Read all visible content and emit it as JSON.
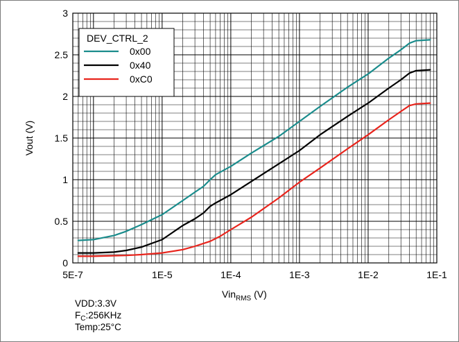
{
  "chart_data": {
    "type": "line",
    "xscale": "log",
    "xlabel": {
      "main": "Vin",
      "sub": "RMS",
      "unit": " (V)"
    },
    "ylabel": "Vout (V)",
    "xlim": [
      5e-07,
      0.1
    ],
    "ylim": [
      0,
      3
    ],
    "xticks": [
      {
        "value": 5e-07,
        "label": "5E-7"
      },
      {
        "value": 1e-05,
        "label": "1E-5"
      },
      {
        "value": 0.0001,
        "label": "1E-4"
      },
      {
        "value": 0.001,
        "label": "1E-3"
      },
      {
        "value": 0.01,
        "label": "1E-2"
      },
      {
        "value": 0.1,
        "label": "1E-1"
      }
    ],
    "yticks": [
      {
        "value": 0,
        "label": "0"
      },
      {
        "value": 0.5,
        "label": "0.5"
      },
      {
        "value": 1,
        "label": "1"
      },
      {
        "value": 1.5,
        "label": "1.5"
      },
      {
        "value": 2,
        "label": "2"
      },
      {
        "value": 2.5,
        "label": "2.5"
      },
      {
        "value": 3,
        "label": "3"
      }
    ],
    "grid": true,
    "legend": {
      "title": "DEV_CTRL_2",
      "placement": "top-left"
    },
    "series": [
      {
        "name": "0x00",
        "color": "#1a8c8c",
        "points": [
          [
            6e-07,
            0.27
          ],
          [
            1e-06,
            0.28
          ],
          [
            2e-06,
            0.33
          ],
          [
            3e-06,
            0.38
          ],
          [
            5e-06,
            0.46
          ],
          [
            1e-05,
            0.58
          ],
          [
            2e-05,
            0.75
          ],
          [
            3e-05,
            0.85
          ],
          [
            4e-05,
            0.92
          ],
          [
            5e-05,
            1.0
          ],
          [
            6e-05,
            1.06
          ],
          [
            0.0001,
            1.16
          ],
          [
            0.0002,
            1.32
          ],
          [
            0.0005,
            1.52
          ],
          [
            0.001,
            1.7
          ],
          [
            0.002,
            1.88
          ],
          [
            0.005,
            2.11
          ],
          [
            0.01,
            2.27
          ],
          [
            0.02,
            2.46
          ],
          [
            0.03,
            2.56
          ],
          [
            0.04,
            2.64
          ],
          [
            0.05,
            2.67
          ],
          [
            0.08,
            2.68
          ]
        ]
      },
      {
        "name": "0x40",
        "color": "#000000",
        "points": [
          [
            6e-07,
            0.12
          ],
          [
            1e-06,
            0.12
          ],
          [
            2e-06,
            0.13
          ],
          [
            3e-06,
            0.15
          ],
          [
            5e-06,
            0.19
          ],
          [
            1e-05,
            0.28
          ],
          [
            2e-05,
            0.45
          ],
          [
            3e-05,
            0.53
          ],
          [
            4e-05,
            0.6
          ],
          [
            5e-05,
            0.68
          ],
          [
            6e-05,
            0.72
          ],
          [
            0.0001,
            0.82
          ],
          [
            0.0002,
            0.98
          ],
          [
            0.0005,
            1.19
          ],
          [
            0.001,
            1.35
          ],
          [
            0.002,
            1.54
          ],
          [
            0.005,
            1.76
          ],
          [
            0.01,
            1.92
          ],
          [
            0.02,
            2.1
          ],
          [
            0.03,
            2.2
          ],
          [
            0.04,
            2.28
          ],
          [
            0.05,
            2.31
          ],
          [
            0.08,
            2.32
          ]
        ]
      },
      {
        "name": "0xC0",
        "color": "#e8241c",
        "points": [
          [
            6e-07,
            0.08
          ],
          [
            1e-06,
            0.08
          ],
          [
            3e-06,
            0.09
          ],
          [
            5e-06,
            0.1
          ],
          [
            1e-05,
            0.12
          ],
          [
            2e-05,
            0.16
          ],
          [
            3e-05,
            0.2
          ],
          [
            5e-05,
            0.26
          ],
          [
            7e-05,
            0.32
          ],
          [
            0.0001,
            0.4
          ],
          [
            0.0002,
            0.55
          ],
          [
            0.0005,
            0.78
          ],
          [
            0.001,
            0.97
          ],
          [
            0.002,
            1.14
          ],
          [
            0.005,
            1.37
          ],
          [
            0.01,
            1.54
          ],
          [
            0.02,
            1.72
          ],
          [
            0.03,
            1.82
          ],
          [
            0.04,
            1.89
          ],
          [
            0.05,
            1.91
          ],
          [
            0.08,
            1.92
          ]
        ]
      }
    ]
  },
  "conditions": {
    "vdd": "VDD:3.3V",
    "fc_main": "F",
    "fc_sub": "C",
    "fc_value": ":256KHz",
    "temp": "Temp:25°C"
  }
}
